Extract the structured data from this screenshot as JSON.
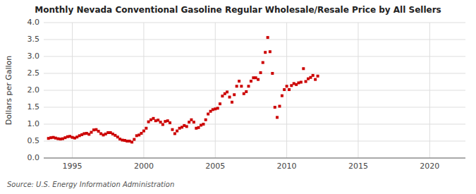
{
  "chart_data": {
    "type": "scatter",
    "title": "Monthly Nevada Conventional Gasoline Regular Wholesale/Resale Price by All Sellers",
    "ylabel": "Dollars per Gallon",
    "annotations": [
      "Source: U.S. Energy Information Administration"
    ],
    "color": "#cc0000",
    "marker": "square",
    "grid": true,
    "xlim": [
      1993.0,
      2022.5
    ],
    "ylim": [
      0.0,
      4.0
    ],
    "xticks": [
      1995,
      2000,
      2005,
      2010,
      2015,
      2020
    ],
    "yticks": [
      {
        "value": 0.0,
        "label": "0.0"
      },
      0.5,
      {
        "value": 1.0,
        "label": "1.0"
      },
      1.5,
      {
        "value": 2.0,
        "label": "2.0"
      },
      2.5,
      {
        "value": 3.0,
        "label": "3.0"
      },
      3.5,
      {
        "value": 4.0,
        "label": "4.0"
      }
    ],
    "x": [
      1993.33,
      1993.5,
      1993.67,
      1993.83,
      1994.0,
      1994.17,
      1994.33,
      1994.5,
      1994.67,
      1994.83,
      1995.0,
      1995.17,
      1995.33,
      1995.5,
      1995.67,
      1995.83,
      1996.0,
      1996.17,
      1996.33,
      1996.5,
      1996.67,
      1996.83,
      1997.0,
      1997.17,
      1997.33,
      1997.5,
      1997.67,
      1997.83,
      1998.0,
      1998.17,
      1998.33,
      1998.5,
      1998.67,
      1998.83,
      1999.0,
      1999.17,
      1999.33,
      1999.5,
      1999.67,
      1999.83,
      2000.0,
      2000.17,
      2000.33,
      2000.5,
      2000.67,
      2000.83,
      2001.0,
      2001.17,
      2001.33,
      2001.5,
      2001.67,
      2001.83,
      2002.0,
      2002.17,
      2002.33,
      2002.5,
      2002.67,
      2002.83,
      2003.0,
      2003.17,
      2003.33,
      2003.5,
      2003.67,
      2003.83,
      2004.0,
      2004.17,
      2004.33,
      2004.5,
      2004.67,
      2004.83,
      2005.0,
      2005.17,
      2005.33,
      2005.5,
      2005.67,
      2005.83,
      2006.0,
      2006.17,
      2006.33,
      2006.5,
      2006.67,
      2006.83,
      2007.0,
      2007.17,
      2007.33,
      2007.5,
      2007.67,
      2007.83,
      2008.0,
      2008.17,
      2008.33,
      2008.5,
      2008.67,
      2008.83,
      2009.0,
      2009.17,
      2009.33,
      2009.5,
      2009.67,
      2009.83,
      2010.0,
      2010.17,
      2010.33,
      2010.5,
      2010.67,
      2010.83,
      2011.0,
      2011.17,
      2011.33,
      2011.5,
      2011.67,
      2011.83,
      2012.0,
      2012.17
    ],
    "values": [
      0.58,
      0.6,
      0.61,
      0.59,
      0.57,
      0.56,
      0.57,
      0.6,
      0.63,
      0.64,
      0.61,
      0.59,
      0.62,
      0.66,
      0.69,
      0.72,
      0.73,
      0.7,
      0.76,
      0.83,
      0.84,
      0.79,
      0.72,
      0.68,
      0.71,
      0.75,
      0.75,
      0.71,
      0.67,
      0.62,
      0.56,
      0.53,
      0.52,
      0.5,
      0.5,
      0.47,
      0.55,
      0.66,
      0.68,
      0.73,
      0.8,
      0.88,
      1.07,
      1.13,
      1.17,
      1.1,
      1.12,
      1.06,
      0.99,
      1.08,
      1.1,
      1.04,
      0.84,
      0.72,
      0.8,
      0.88,
      0.91,
      0.96,
      0.93,
      1.06,
      1.13,
      1.06,
      0.88,
      0.9,
      0.97,
      1.0,
      1.13,
      1.3,
      1.38,
      1.43,
      1.45,
      1.47,
      1.6,
      1.83,
      1.9,
      1.95,
      1.8,
      1.65,
      1.87,
      2.12,
      2.27,
      2.12,
      1.9,
      1.96,
      2.12,
      2.27,
      2.37,
      2.37,
      2.32,
      2.52,
      2.82,
      3.12,
      3.56,
      3.14,
      2.5,
      1.5,
      1.2,
      1.53,
      1.84,
      2.02,
      2.12,
      2.02,
      2.14,
      2.2,
      2.17,
      2.22,
      2.24,
      2.64,
      2.26,
      2.34,
      2.38,
      2.44,
      2.32,
      2.42
    ]
  }
}
